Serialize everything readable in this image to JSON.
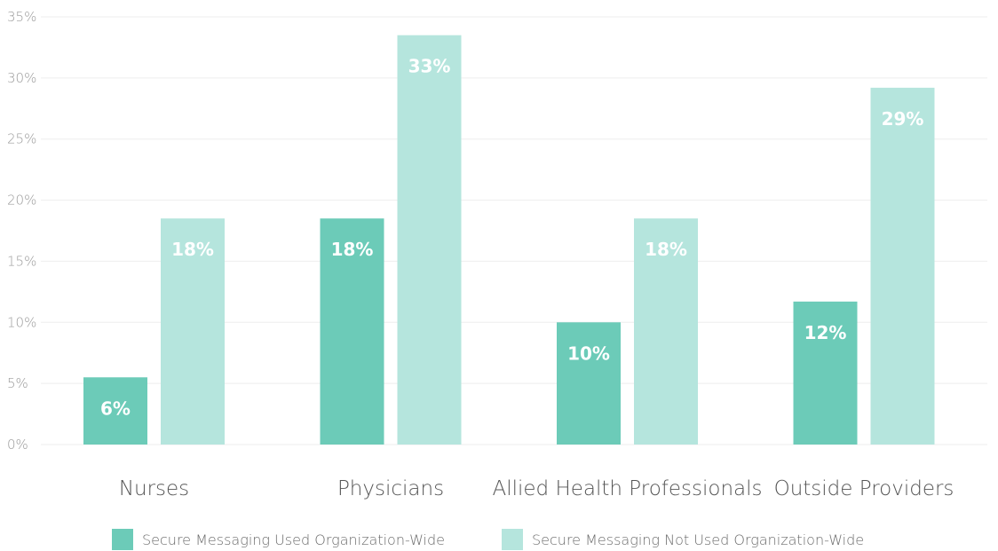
{
  "chart_data": {
    "type": "bar",
    "categories": [
      "Nurses",
      "Physicians",
      "Allied Health Professionals",
      "Outside Providers"
    ],
    "series": [
      {
        "name": "Secure Messaging Used Organization-Wide",
        "values": [
          5.5,
          18.5,
          10.0,
          11.7
        ],
        "labels": [
          "6%",
          "18%",
          "10%",
          "12%"
        ],
        "color": "#6ccbb8"
      },
      {
        "name": "Secure Messaging Not Used Organization-Wide",
        "values": [
          18.5,
          33.5,
          18.5,
          29.2
        ],
        "labels": [
          "18%",
          "33%",
          "18%",
          "29%"
        ],
        "color": "#b5e5dd"
      }
    ],
    "ylim": [
      0,
      35
    ],
    "yticks": [
      0,
      5,
      10,
      15,
      20,
      25,
      30,
      35
    ],
    "ytick_labels": [
      "0%",
      "5%",
      "10%",
      "15%",
      "20%",
      "25%",
      "30%",
      "35%"
    ],
    "title": "",
    "xlabel": "",
    "ylabel": "",
    "grid": true,
    "legend_position": "bottom-center"
  }
}
